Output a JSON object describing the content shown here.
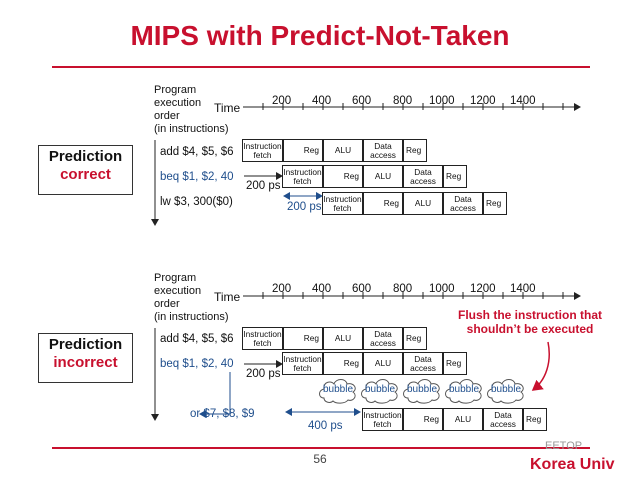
{
  "title": "MIPS with Predict-Not-Taken",
  "axis_label_lines": [
    "Program",
    "execution",
    "order",
    "(in instructions)"
  ],
  "time_label": "Time",
  "ticks": [
    "200",
    "400",
    "600",
    "800",
    "1000",
    "1200",
    "1400"
  ],
  "stages": {
    "fetch_lines": [
      "Instruction",
      "fetch"
    ],
    "reg": "Reg",
    "alu": "ALU",
    "data_lines": [
      "Data",
      "access"
    ]
  },
  "top": {
    "prediction_line1": "Prediction",
    "prediction_line2": "correct",
    "instructions": [
      "add $4, $5, $6",
      "beq $1, $2, 40",
      "lw  $3, 300($0)"
    ],
    "gap1": "200 ps",
    "gap2": "200 ps"
  },
  "bottom": {
    "prediction_line1": "Prediction",
    "prediction_line2": "incorrect",
    "instructions": [
      "add $4, $5, $6",
      "beq $1, $2, 40",
      "or $7, $8, $9"
    ],
    "gap1": "200 ps",
    "gap2": "400 ps",
    "bubble_label": "bubble",
    "flush_note": "Flush the instruction that shouldn’t be executed"
  },
  "page_number": "56",
  "university": "Korea Univ",
  "watermark": "EETOP",
  "colors": {
    "accent": "#c8102e",
    "blue": "#1f4e8c"
  }
}
